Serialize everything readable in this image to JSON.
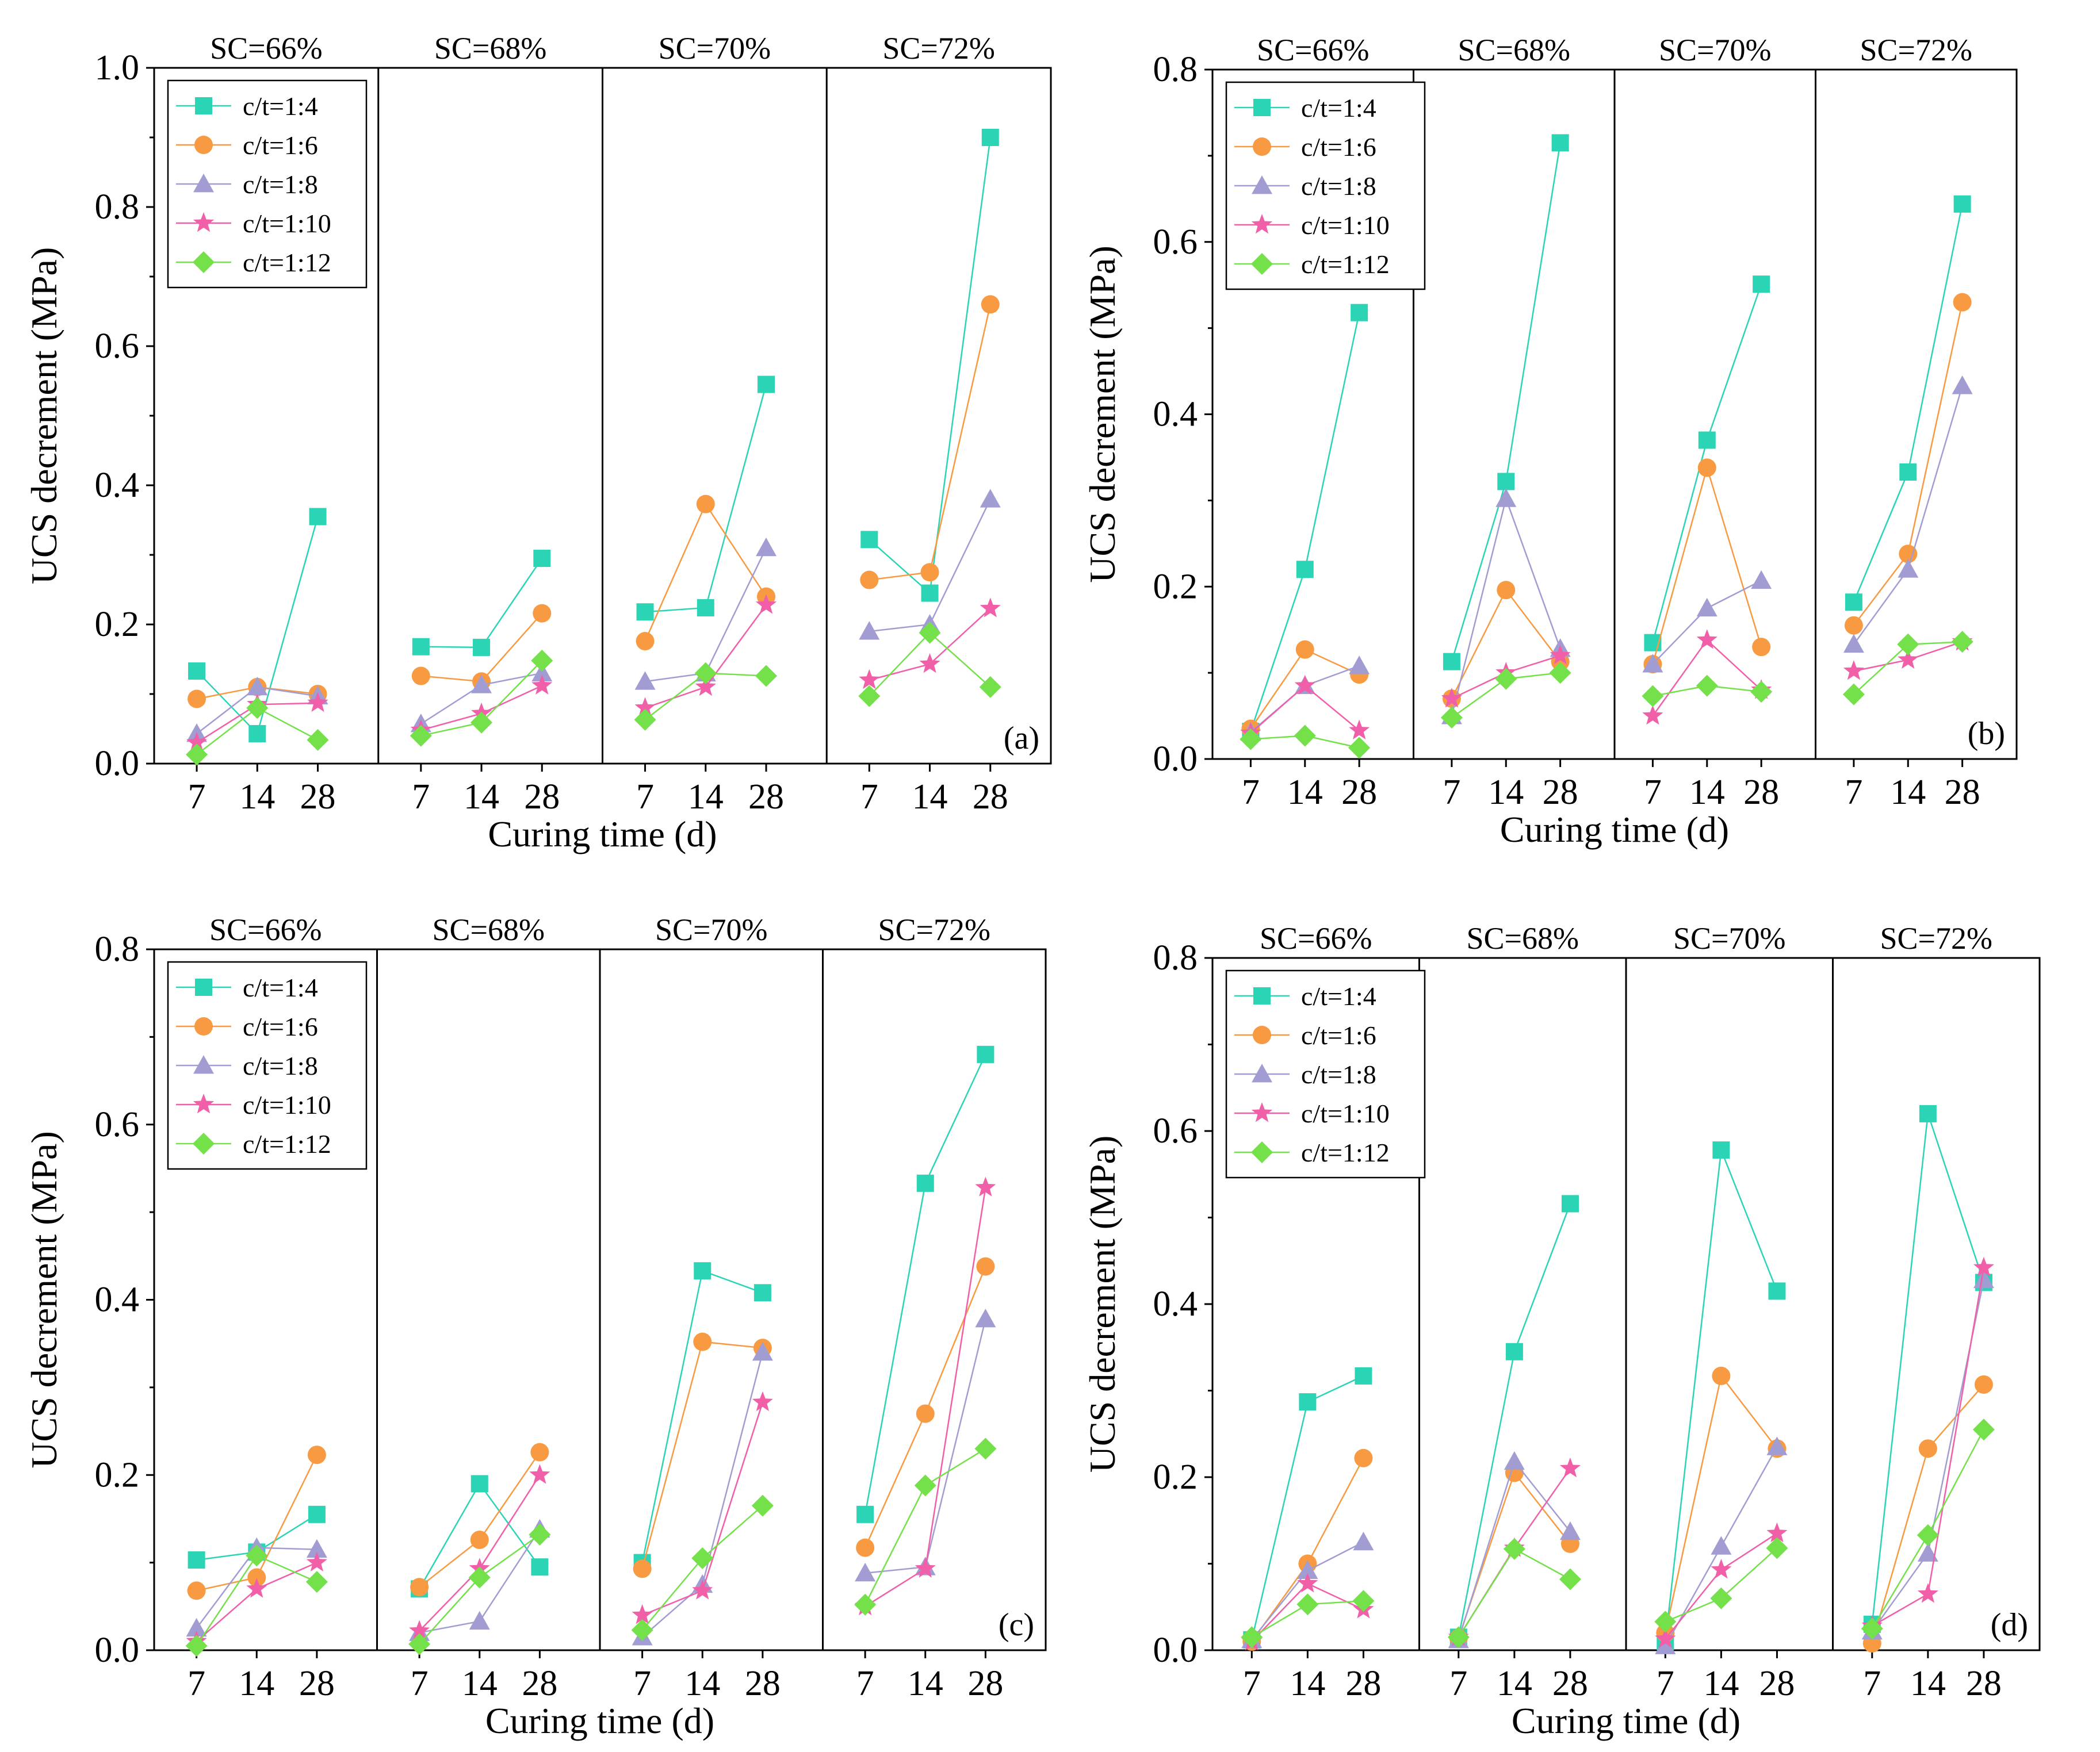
{
  "colors": {
    "c/t=1:4": "#2ad4b4",
    "c/t=1:6": "#f79a42",
    "c/t=1:8": "#a19dd3",
    "c/t=1:10": "#f05fa8",
    "c/t=1:12": "#74e04a"
  },
  "markers": {
    "c/t=1:4": "square",
    "c/t=1:6": "circle",
    "c/t=1:8": "triangle",
    "c/t=1:10": "star",
    "c/t=1:12": "diamond"
  },
  "chart_data": [
    {
      "type": "line",
      "panel": "(a)",
      "xlabel": "Curing time (d)",
      "ylabel": "UCS decrement (MPa)",
      "ylim": [
        0,
        1.0
      ],
      "yticks": [
        "0.0",
        "0.2",
        "0.4",
        "0.6",
        "0.8",
        "1.0"
      ],
      "x": [
        "7",
        "14",
        "28"
      ],
      "groups": [
        "SC=66%",
        "SC=68%",
        "SC=70%",
        "SC=72%"
      ],
      "legend_position": "top-left",
      "series": [
        {
          "name": "c/t=1:4",
          "values": [
            [
              0.133,
              0.043,
              0.355
            ],
            [
              0.168,
              0.167,
              0.295
            ],
            [
              0.218,
              0.224,
              0.545
            ],
            [
              0.322,
              0.245,
              0.9
            ]
          ]
        },
        {
          "name": "c/t=1:6",
          "values": [
            [
              0.093,
              0.11,
              0.1
            ],
            [
              0.126,
              0.118,
              0.216
            ],
            [
              0.176,
              0.373,
              0.24
            ],
            [
              0.264,
              0.275,
              0.66
            ]
          ]
        },
        {
          "name": "c/t=1:8",
          "values": [
            [
              0.043,
              0.11,
              0.097
            ],
            [
              0.057,
              0.113,
              0.13
            ],
            [
              0.118,
              0.13,
              0.31
            ],
            [
              0.19,
              0.2,
              0.38
            ]
          ]
        },
        {
          "name": "c/t=1:10",
          "values": [
            [
              0.03,
              0.085,
              0.087
            ],
            [
              0.048,
              0.072,
              0.112
            ],
            [
              0.08,
              0.11,
              0.228
            ],
            [
              0.12,
              0.143,
              0.223
            ]
          ]
        },
        {
          "name": "c/t=1:12",
          "values": [
            [
              0.013,
              0.08,
              0.034
            ],
            [
              0.04,
              0.059,
              0.148
            ],
            [
              0.063,
              0.13,
              0.126
            ],
            [
              0.097,
              0.188,
              0.11
            ]
          ]
        }
      ]
    },
    {
      "type": "line",
      "panel": "(b)",
      "xlabel": "Curing time (d)",
      "ylabel": "UCS decrement (MPa)",
      "ylim": [
        0,
        0.8
      ],
      "yticks": [
        "0.0",
        "0.2",
        "0.4",
        "0.6",
        "0.8"
      ],
      "x": [
        "7",
        "14",
        "28"
      ],
      "groups": [
        "SC=66%",
        "SC=68%",
        "SC=70%",
        "SC=72%"
      ],
      "legend_position": "top-left",
      "series": [
        {
          "name": "c/t=1:4",
          "values": [
            [
              0.032,
              0.22,
              0.518
            ],
            [
              0.113,
              0.322,
              0.715
            ],
            [
              0.135,
              0.37,
              0.551
            ],
            [
              0.182,
              0.333,
              0.644
            ]
          ]
        },
        {
          "name": "c/t=1:6",
          "values": [
            [
              0.035,
              0.127,
              0.098
            ],
            [
              0.07,
              0.196,
              0.113
            ],
            [
              0.11,
              0.338,
              0.13
            ],
            [
              0.155,
              0.238,
              0.53
            ]
          ]
        },
        {
          "name": "c/t=1:8",
          "values": [
            [
              0.031,
              0.085,
              0.108
            ],
            [
              0.05,
              0.302,
              0.128
            ],
            [
              0.11,
              0.175,
              0.207
            ],
            [
              0.133,
              0.22,
              0.433
            ]
          ]
        },
        {
          "name": "c/t=1:10",
          "values": [
            [
              0.03,
              0.085,
              0.033
            ],
            [
              0.07,
              0.1,
              0.12
            ],
            [
              0.05,
              0.138,
              0.08
            ],
            [
              0.102,
              0.115,
              0.136
            ]
          ]
        },
        {
          "name": "c/t=1:12",
          "values": [
            [
              0.023,
              0.027,
              0.013
            ],
            [
              0.048,
              0.093,
              0.1
            ],
            [
              0.073,
              0.085,
              0.078
            ],
            [
              0.075,
              0.133,
              0.136
            ]
          ]
        }
      ]
    },
    {
      "type": "line",
      "panel": "(c)",
      "xlabel": "Curing time (d)",
      "ylabel": "UCS decrement (MPa)",
      "ylim": [
        0,
        0.8
      ],
      "yticks": [
        "0.0",
        "0.2",
        "0.4",
        "0.6",
        "0.8"
      ],
      "x": [
        "7",
        "14",
        "28"
      ],
      "groups": [
        "SC=66%",
        "SC=68%",
        "SC=70%",
        "SC=72%"
      ],
      "legend_position": "top-left",
      "series": [
        {
          "name": "c/t=1:4",
          "values": [
            [
              0.103,
              0.112,
              0.155
            ],
            [
              0.07,
              0.19,
              0.095
            ],
            [
              0.1,
              0.433,
              0.408
            ],
            [
              0.155,
              0.533,
              0.68
            ]
          ]
        },
        {
          "name": "c/t=1:6",
          "values": [
            [
              0.068,
              0.083,
              0.223
            ],
            [
              0.072,
              0.126,
              0.226
            ],
            [
              0.093,
              0.352,
              0.345
            ],
            [
              0.117,
              0.27,
              0.438
            ]
          ]
        },
        {
          "name": "c/t=1:8",
          "values": [
            [
              0.025,
              0.117,
              0.115
            ],
            [
              0.02,
              0.033,
              0.138
            ],
            [
              0.015,
              0.075,
              0.34
            ],
            [
              0.088,
              0.095,
              0.378
            ]
          ]
        },
        {
          "name": "c/t=1:10",
          "values": [
            [
              0.01,
              0.07,
              0.1
            ],
            [
              0.022,
              0.093,
              0.2
            ],
            [
              0.04,
              0.068,
              0.283
            ],
            [
              0.05,
              0.093,
              0.528
            ]
          ]
        },
        {
          "name": "c/t=1:12",
          "values": [
            [
              0.005,
              0.108,
              0.078
            ],
            [
              0.007,
              0.083,
              0.132
            ],
            [
              0.023,
              0.105,
              0.165
            ],
            [
              0.052,
              0.188,
              0.23
            ]
          ]
        }
      ]
    },
    {
      "type": "line",
      "panel": "(d)",
      "xlabel": "Curing time (d)",
      "ylabel": "UCS decrement (MPa)",
      "ylim": [
        0,
        0.8
      ],
      "yticks": [
        "0.0",
        "0.2",
        "0.4",
        "0.6",
        "0.8"
      ],
      "x": [
        "7",
        "14",
        "28"
      ],
      "groups": [
        "SC=66%",
        "SC=68%",
        "SC=70%",
        "SC=72%"
      ],
      "legend_position": "top-left",
      "series": [
        {
          "name": "c/t=1:4",
          "values": [
            [
              0.012,
              0.287,
              0.317
            ],
            [
              0.015,
              0.345,
              0.516
            ],
            [
              0.01,
              0.578,
              0.415
            ],
            [
              0.03,
              0.62,
              0.425
            ]
          ]
        },
        {
          "name": "c/t=1:6",
          "values": [
            [
              0.01,
              0.1,
              0.222
            ],
            [
              0.014,
              0.205,
              0.123
            ],
            [
              0.02,
              0.317,
              0.233
            ],
            [
              0.008,
              0.233,
              0.307
            ]
          ]
        },
        {
          "name": "c/t=1:8",
          "values": [
            [
              0.012,
              0.092,
              0.125
            ],
            [
              0.012,
              0.218,
              0.137
            ],
            [
              0.005,
              0.12,
              0.235
            ],
            [
              0.022,
              0.112,
              0.428
            ]
          ]
        },
        {
          "name": "c/t=1:10",
          "values": [
            [
              0.01,
              0.077,
              0.047
            ],
            [
              0.015,
              0.118,
              0.21
            ],
            [
              0.013,
              0.093,
              0.135
            ],
            [
              0.028,
              0.065,
              0.442
            ]
          ]
        },
        {
          "name": "c/t=1:12",
          "values": [
            [
              0.015,
              0.053,
              0.057
            ],
            [
              0.015,
              0.117,
              0.082
            ],
            [
              0.033,
              0.06,
              0.118
            ],
            [
              0.025,
              0.133,
              0.255
            ]
          ]
        }
      ]
    }
  ]
}
